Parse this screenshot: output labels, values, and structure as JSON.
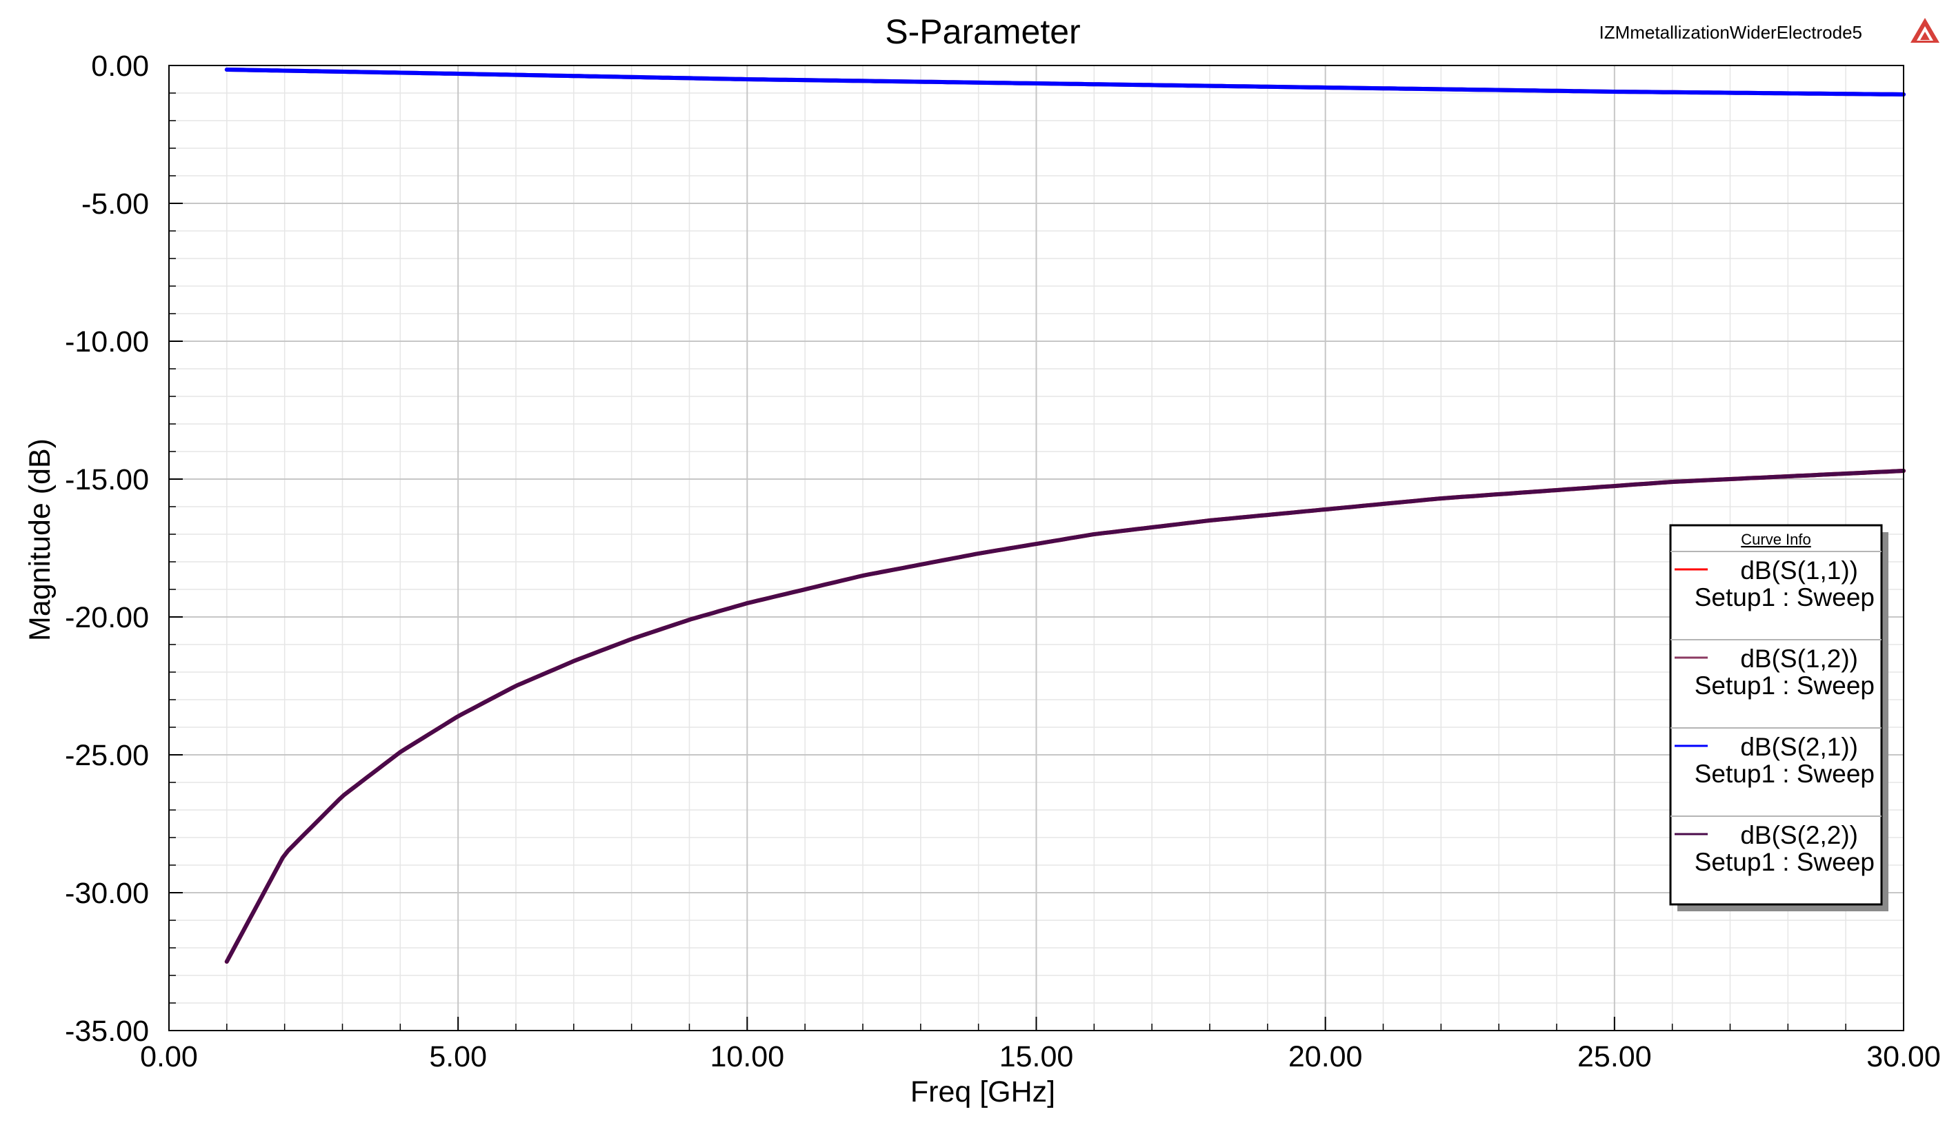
{
  "header": {
    "project_name": "IZMmetallizationWiderElectrode5"
  },
  "colors": {
    "background": "#ffffff",
    "logo": "#d6403a"
  },
  "icons": {
    "logo": "ansys-triangle-logo"
  },
  "chart_data": {
    "type": "line",
    "title": "S-Parameter",
    "xlabel": "Freq [GHz]",
    "ylabel": "Magnitude (dB)",
    "xlim": [
      0,
      30
    ],
    "ylim": [
      -35,
      0
    ],
    "x_ticks": [
      0,
      5,
      10,
      15,
      20,
      25,
      30
    ],
    "y_ticks": [
      0,
      -5,
      -10,
      -15,
      -20,
      -25,
      -30,
      -35
    ],
    "x_tick_labels": [
      "0.00",
      "5.00",
      "10.00",
      "15.00",
      "20.00",
      "25.00",
      "30.00"
    ],
    "y_tick_labels": [
      "0.00",
      "-5.00",
      "-10.00",
      "-15.00",
      "-20.00",
      "-25.00",
      "-30.00",
      "-35.00"
    ],
    "x_minor_step": 1,
    "y_minor_step": 1,
    "grid": true,
    "legend": {
      "title": "Curve Info",
      "placement": "right",
      "entries": [
        {
          "name": "dB(S(1,1))",
          "sub": "Setup1 : Sweep",
          "color": "#ff0000"
        },
        {
          "name": "dB(S(1,2))",
          "sub": "Setup1 : Sweep",
          "color": "#8b3a62"
        },
        {
          "name": "dB(S(2,1))",
          "sub": "Setup1 : Sweep",
          "color": "#0000ff"
        },
        {
          "name": "dB(S(2,2))",
          "sub": "Setup1 : Sweep",
          "color": "#4a0a4a"
        }
      ]
    },
    "series": [
      {
        "name": "dB(S(1,1))",
        "color": "#ff0000",
        "x": [
          1,
          2,
          3,
          4,
          5,
          6,
          7,
          8,
          9,
          10,
          12,
          14,
          16,
          18,
          20,
          22,
          24,
          26,
          28,
          30
        ],
        "y": [
          -32.5,
          -28.6,
          -26.5,
          -24.9,
          -23.6,
          -22.5,
          -21.6,
          -20.8,
          -20.1,
          -19.5,
          -18.5,
          -17.7,
          -17.0,
          -16.5,
          -16.1,
          -15.7,
          -15.4,
          -15.1,
          -14.9,
          -14.7
        ]
      },
      {
        "name": "dB(S(1,2))",
        "color": "#8b3a62",
        "x": [
          1,
          5,
          10,
          15,
          20,
          25,
          30
        ],
        "y": [
          -0.15,
          -0.3,
          -0.5,
          -0.65,
          -0.8,
          -0.95,
          -1.05
        ]
      },
      {
        "name": "dB(S(2,1))",
        "color": "#0000ff",
        "x": [
          1,
          5,
          10,
          15,
          20,
          25,
          30
        ],
        "y": [
          -0.15,
          -0.3,
          -0.5,
          -0.65,
          -0.8,
          -0.95,
          -1.05
        ]
      },
      {
        "name": "dB(S(2,2))",
        "color": "#4a0a4a",
        "x": [
          1,
          2,
          3,
          4,
          5,
          6,
          7,
          8,
          9,
          10,
          12,
          14,
          16,
          18,
          20,
          22,
          24,
          26,
          28,
          30
        ],
        "y": [
          -32.5,
          -28.6,
          -26.5,
          -24.9,
          -23.6,
          -22.5,
          -21.6,
          -20.8,
          -20.1,
          -19.5,
          -18.5,
          -17.7,
          -17.0,
          -16.5,
          -16.1,
          -15.7,
          -15.4,
          -15.1,
          -14.9,
          -14.7
        ]
      }
    ]
  }
}
